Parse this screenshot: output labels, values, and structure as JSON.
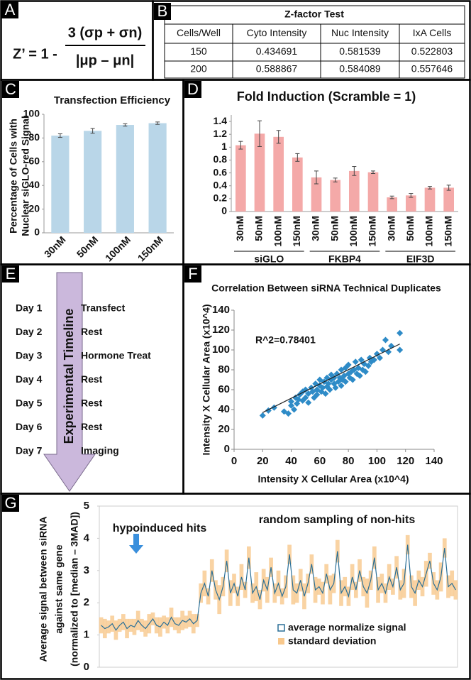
{
  "panel_labels": [
    "A",
    "B",
    "C",
    "D",
    "E",
    "F",
    "G"
  ],
  "formula": {
    "left": "Z’ = 1 -",
    "numerator": "3 (σp + σn)",
    "denominator": "|μp – μn|"
  },
  "table": {
    "title": "Z-factor Test",
    "header": [
      "Cells/Well",
      "Cyto Intensity",
      "Nuc Intensity",
      "IxA Cells"
    ],
    "rows": [
      [
        150,
        0.434691,
        0.581539,
        0.522803
      ],
      [
        200,
        0.588867,
        0.584089,
        0.557646
      ]
    ]
  },
  "timeline": {
    "title": "Experimental Timeline",
    "days": [
      {
        "day": "Day 1",
        "task": "Transfect"
      },
      {
        "day": "Day 2",
        "task": "Rest"
      },
      {
        "day": "Day 3",
        "task": "Hormone Treat"
      },
      {
        "day": "Day 4",
        "task": "Rest"
      },
      {
        "day": "Day 5",
        "task": "Rest"
      },
      {
        "day": "Day 6",
        "task": "Rest"
      },
      {
        "day": "Day 7",
        "task": "Imaging"
      }
    ]
  },
  "chart_data": [
    {
      "type": "bar",
      "title": "Transfection Efficiency",
      "ylabel": [
        "Percentage of Cells with",
        "Nuclear siGLO-red Signal"
      ],
      "categories": [
        "30nM",
        "50nM",
        "100nM",
        "150nM"
      ],
      "values": [
        82,
        86,
        91,
        92.5
      ],
      "errors": [
        1.5,
        2,
        1,
        1
      ],
      "color": "#b9d6e8",
      "ylim": [
        0,
        100
      ],
      "yticks": [
        0,
        20,
        40,
        60,
        80,
        100
      ],
      "grid": false
    },
    {
      "type": "bar",
      "title": "Fold Induction (Scramble = 1)",
      "categories": [
        "30nM",
        "50nM",
        "100nM",
        "150nM",
        "30nM",
        "50nM",
        "100nM",
        "150nM",
        "30nM",
        "50nM",
        "100nM",
        "150nM"
      ],
      "groups": [
        "siGLO",
        "FKBP4",
        "EIF3D"
      ],
      "values": [
        1.03,
        1.21,
        1.16,
        0.84,
        0.53,
        0.49,
        0.63,
        0.61,
        0.22,
        0.25,
        0.37,
        0.37
      ],
      "errors": [
        0.06,
        0.2,
        0.1,
        0.06,
        0.1,
        0.03,
        0.07,
        0.02,
        0.02,
        0.03,
        0.02,
        0.04
      ],
      "color": "#f4a9a8",
      "ylim": [
        0,
        1.5
      ],
      "yticks": [
        0,
        0.2,
        0.4,
        0.6,
        0.8,
        1,
        1.2,
        1.4
      ],
      "grid": false
    },
    {
      "type": "scatter",
      "title": "Correlation Between siRNA Technical Duplicates",
      "xlabel": "Intensity X Cellular Area (x10^4)",
      "ylabel": "Intensity X Cellular Area (x10^4)",
      "annotation": "R^2=0.78401",
      "color": "#2e8bc7",
      "x": [
        20,
        24,
        28,
        35,
        38,
        40,
        40,
        42,
        43,
        44,
        45,
        46,
        48,
        48,
        50,
        50,
        52,
        52,
        54,
        55,
        56,
        57,
        58,
        58,
        60,
        60,
        61,
        62,
        63,
        64,
        65,
        65,
        66,
        67,
        68,
        68,
        70,
        70,
        71,
        72,
        73,
        74,
        75,
        75,
        76,
        77,
        78,
        78,
        80,
        80,
        81,
        82,
        83,
        84,
        85,
        86,
        87,
        88,
        89,
        90,
        91,
        92,
        94,
        95,
        96,
        98,
        100,
        102,
        104,
        106,
        108,
        110,
        116,
        116
      ],
      "y": [
        34,
        39,
        42,
        38,
        36,
        44,
        48,
        40,
        52,
        46,
        50,
        55,
        49,
        58,
        52,
        60,
        56,
        47,
        62,
        58,
        52,
        66,
        60,
        55,
        64,
        70,
        58,
        62,
        68,
        56,
        72,
        63,
        66,
        60,
        70,
        75,
        66,
        72,
        62,
        76,
        68,
        72,
        80,
        64,
        70,
        74,
        82,
        68,
        76,
        85,
        72,
        78,
        70,
        80,
        88,
        76,
        82,
        74,
        90,
        80,
        86,
        78,
        84,
        92,
        88,
        90,
        96,
        92,
        100,
        110,
        98,
        104,
        117,
        100
      ],
      "trendline": {
        "x": [
          20,
          116
        ],
        "y": [
          37,
          106
        ]
      },
      "xlim": [
        0,
        140
      ],
      "ylim": [
        0,
        140
      ],
      "xticks": [
        0,
        20,
        40,
        60,
        80,
        100,
        120,
        140
      ],
      "yticks": [
        0,
        20,
        40,
        60,
        80,
        100,
        120,
        140
      ]
    },
    {
      "type": "line",
      "ylabel": [
        "Average signal between siRNA",
        "against same gene",
        "(normalized to [median – 3MAD])"
      ],
      "annotations": [
        "hypoinduced hits",
        "random sampling of non-hits"
      ],
      "series": [
        {
          "name": "average normalize signal",
          "color": "#2a6f97",
          "values": [
            1.3,
            1.2,
            1.25,
            1.35,
            1.15,
            1.3,
            1.4,
            1.2,
            1.3,
            1.25,
            1.45,
            1.3,
            1.2,
            1.35,
            1.5,
            1.3,
            1.25,
            1.4,
            1.3,
            1.55,
            1.35,
            1.3,
            1.45,
            1.4,
            1.5,
            1.35,
            1.45,
            2.3,
            2.6,
            2.2,
            3.0,
            2.4,
            2.1,
            2.5,
            3.3,
            2.3,
            2.6,
            2.2,
            2.8,
            2.4,
            3.4,
            2.3,
            2.5,
            2.1,
            2.7,
            2.4,
            3.1,
            2.3,
            2.6,
            2.2,
            2.5,
            3.5,
            2.4,
            2.3,
            2.7,
            2.2,
            2.6,
            3.2,
            2.4,
            2.5,
            2.3,
            2.9,
            2.4,
            2.6,
            3.6,
            2.3,
            2.5,
            2.2,
            2.8,
            2.4,
            3.0,
            2.5,
            2.3,
            2.7,
            3.4,
            2.4,
            2.6,
            2.3,
            2.8,
            2.5,
            3.1,
            2.4,
            2.6,
            3.8,
            2.5,
            2.3,
            2.7,
            2.5,
            2.9,
            3.3,
            2.6,
            2.4,
            2.8,
            3.7,
            2.5,
            2.6,
            2.4
          ]
        },
        {
          "name": "standard deviation",
          "color": "#f8c88c",
          "values": [
            0.25,
            0.3,
            0.2,
            0.25,
            0.3,
            0.2,
            0.25,
            0.3,
            0.2,
            0.25,
            0.3,
            0.2,
            0.25,
            0.3,
            0.2,
            0.25,
            0.3,
            0.2,
            0.25,
            0.3,
            0.2,
            0.25,
            0.3,
            0.2,
            0.25,
            0.3,
            0.2,
            0.3,
            0.4,
            0.25,
            0.35,
            0.3,
            0.45,
            0.3,
            0.35,
            0.4,
            0.3,
            0.3,
            0.4,
            0.25,
            0.35,
            0.3,
            0.45,
            0.3,
            0.35,
            0.4,
            0.3,
            0.3,
            0.4,
            0.25,
            0.35,
            0.3,
            0.45,
            0.3,
            0.35,
            0.4,
            0.3,
            0.3,
            0.4,
            0.25,
            0.35,
            0.3,
            0.45,
            0.3,
            0.35,
            0.4,
            0.3,
            0.3,
            0.4,
            0.25,
            0.35,
            0.3,
            0.45,
            0.3,
            0.35,
            0.4,
            0.3,
            0.3,
            0.4,
            0.25,
            0.35,
            0.3,
            0.45,
            0.3,
            0.35,
            0.4,
            0.3,
            0.3,
            0.4,
            0.25,
            0.35,
            0.3,
            0.45,
            0.3,
            0.35,
            0.4,
            0.3
          ]
        }
      ],
      "ylim": [
        0,
        5
      ],
      "yticks": [
        0,
        1,
        2,
        3,
        4,
        5
      ]
    }
  ]
}
